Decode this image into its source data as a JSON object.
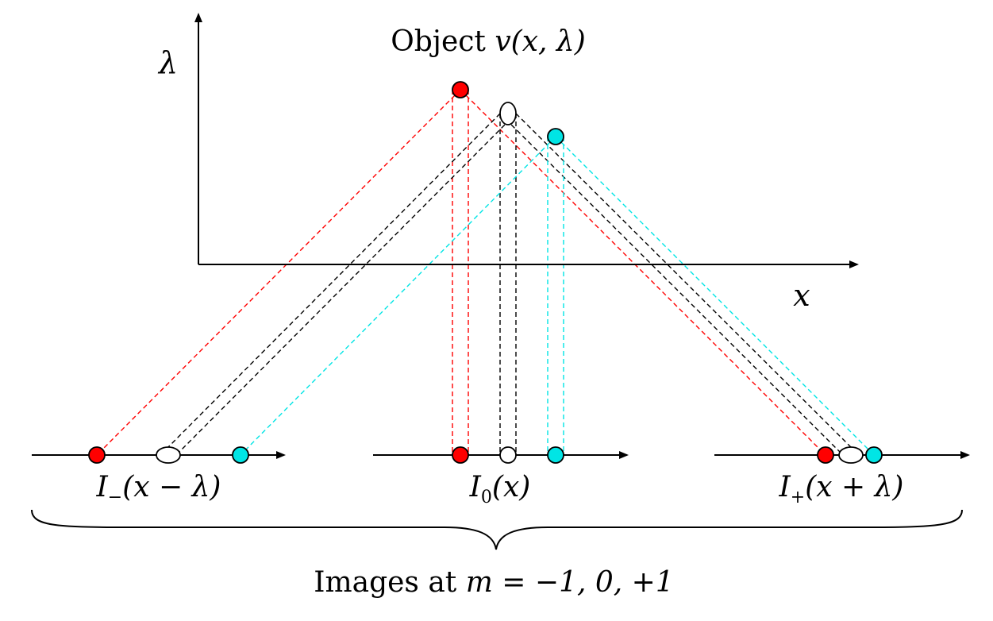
{
  "title": {
    "prefix": "Object ",
    "math": "v(x, λ)"
  },
  "axes": {
    "y_label": "λ",
    "x_label": "x"
  },
  "images": [
    {
      "id": "minus",
      "label_main": "I",
      "label_sub": "−",
      "label_arg": "(x − λ)"
    },
    {
      "id": "zero",
      "label_main": "I",
      "label_sub": "0",
      "label_arg": "(x)"
    },
    {
      "id": "plus",
      "label_main": "I",
      "label_sub": "+",
      "label_arg": "(x + λ)"
    }
  ],
  "caption": {
    "prefix": "Images at ",
    "math": "m = −1, 0, +1"
  },
  "colors": {
    "red": "#ff0000",
    "white": "#ffffff",
    "cyan": "#00e5e5",
    "black": "#000000"
  },
  "point_colors": [
    "red",
    "white",
    "cyan"
  ]
}
